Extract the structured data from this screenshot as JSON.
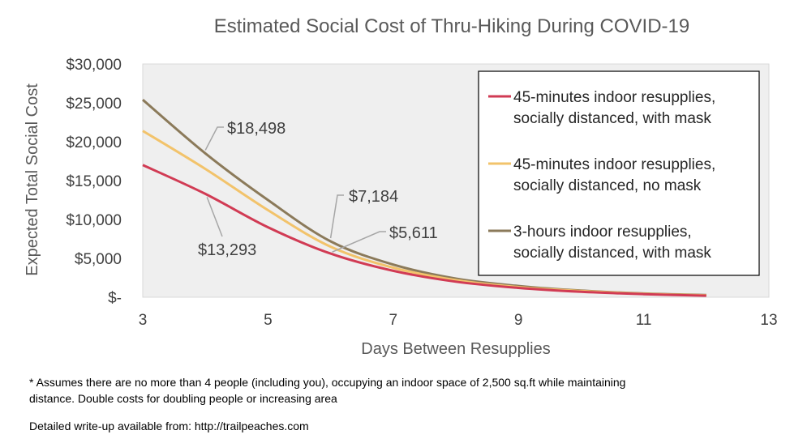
{
  "chart_data": {
    "type": "line",
    "title": "Estimated Social Cost of Thru-Hiking During COVID-19",
    "xlabel": "Days Between Resupplies",
    "ylabel": "Expected Total Social Cost",
    "xlim": [
      3,
      13
    ],
    "ylim": [
      0,
      30000
    ],
    "x_ticks": [
      "3",
      "5",
      "7",
      "9",
      "11",
      "13"
    ],
    "y_ticks": [
      "$-",
      "$5,000",
      "$10,000",
      "$15,000",
      "$20,000",
      "$25,000",
      "$30,000"
    ],
    "x": [
      3,
      4,
      5,
      6,
      7,
      8,
      9,
      10,
      11,
      12
    ],
    "series": [
      {
        "name": "45-minutes indoor resupplies, socially distanced, with mask",
        "color": "#d13b54",
        "values": [
          17000,
          13293,
          9000,
          5611,
          3400,
          2000,
          1200,
          700,
          400,
          200
        ]
      },
      {
        "name": "45-minutes indoor resupplies, socially distanced, no mask",
        "color": "#f2c36b",
        "values": [
          21400,
          16500,
          11200,
          6500,
          3800,
          2200,
          1300,
          800,
          450,
          250
        ]
      },
      {
        "name": "3-hours indoor resupplies, socially distanced, with mask",
        "color": "#8b7a5a",
        "values": [
          25400,
          18498,
          12500,
          7184,
          4200,
          2400,
          1450,
          850,
          480,
          280
        ]
      }
    ],
    "legend_position": "top-right",
    "legend_lines": [
      [
        "45-minutes indoor resupplies,",
        "socially distanced, with mask"
      ],
      [
        "45-minutes indoor resupplies,",
        "socially distanced, no mask"
      ],
      [
        "3-hours indoor resupplies,",
        "socially distanced, with mask"
      ]
    ],
    "annotations": [
      {
        "text": "$18,498",
        "x": 4,
        "y": 18498,
        "series": 2
      },
      {
        "text": "$13,293",
        "x": 4,
        "y": 13293,
        "series": 0
      },
      {
        "text": "$7,184",
        "x": 6,
        "y": 7184,
        "series": 2
      },
      {
        "text": "$5,611",
        "x": 6,
        "y": 5611,
        "series": 0
      }
    ],
    "grid": false,
    "plot_background": "#efefef"
  },
  "footnote_lines": [
    "* Assumes there are no more than 4 people (including you), occupying an indoor space of 2,500 sq.ft while maintaining",
    "distance. Double costs for doubling people or increasing area"
  ],
  "source_note": "Detailed write-up available from: http://trailpeaches.com"
}
